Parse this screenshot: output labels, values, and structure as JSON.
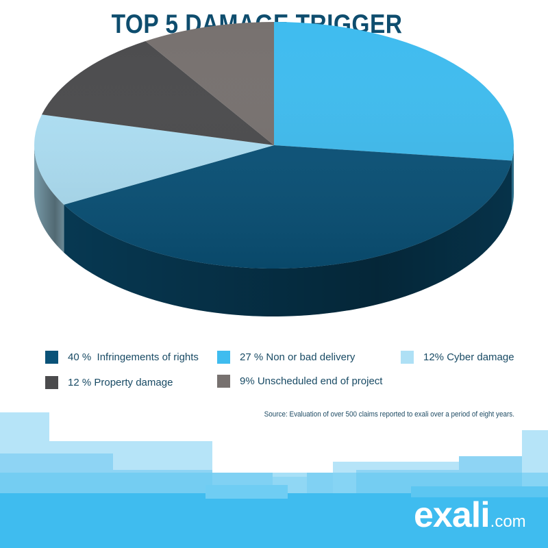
{
  "chart_data": {
    "type": "pie",
    "title": "TOP 5 DAMAGE TRIGGER",
    "slices": [
      {
        "label": "40 %  Infringements of rights",
        "value": 40,
        "color": "#0a5278"
      },
      {
        "label": "27 % Non or bad delivery",
        "value": 27,
        "color": "#3fbcef"
      },
      {
        "label": "12% Cyber damage",
        "value": 12,
        "color": "#aee0f5"
      },
      {
        "label": "12 % Property damage",
        "value": 12,
        "color": "#4b4b4d"
      },
      {
        "label": "9% Unscheduled end of project",
        "value": 9,
        "color": "#77716f"
      }
    ],
    "legend": [
      "40 %  Infringements of rights",
      "27 % Non or bad delivery",
      "12% Cyber damage",
      "12 % Property damage",
      "9% Unscheduled end of project"
    ],
    "legend_placement": "bottom",
    "source": "Source: Evaluation of over 500 claims reported to exali over a period of eight years."
  },
  "logo": {
    "main": "exali",
    "tld": ".com"
  },
  "colors": {
    "title": "#0e4d6e",
    "brand_band": "#3fbcef",
    "logo_text": "#ffffff"
  }
}
